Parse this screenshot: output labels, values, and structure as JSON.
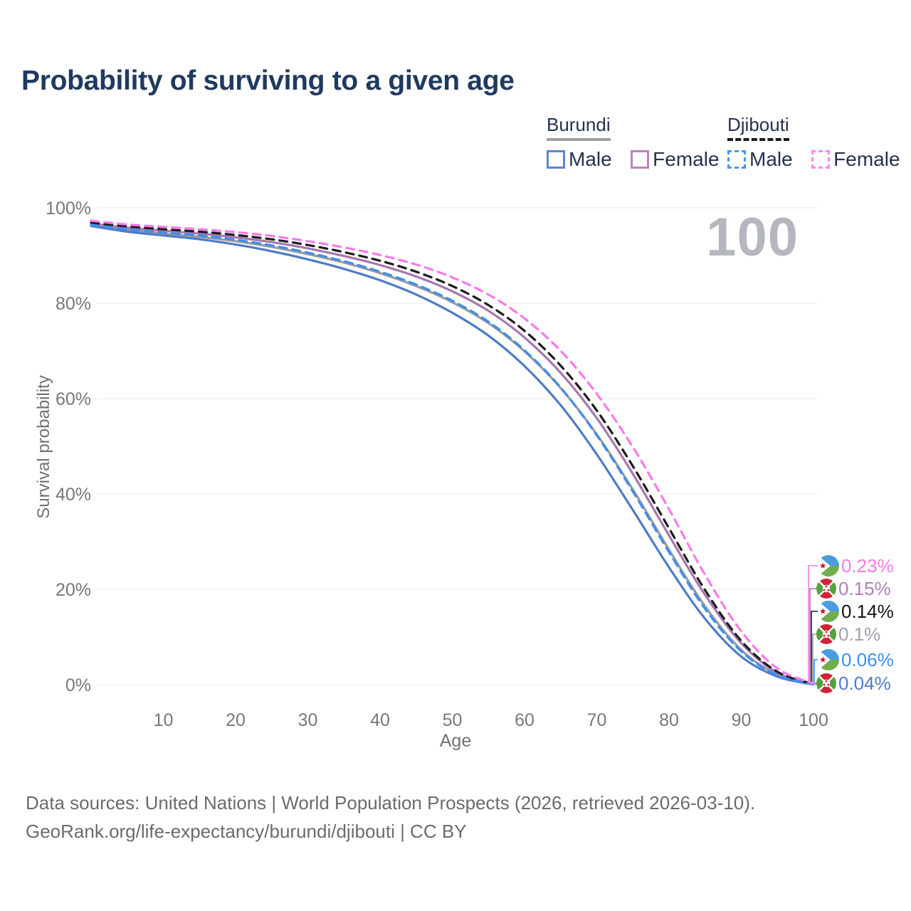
{
  "title": "Probability of surviving to a given age",
  "watermark": "100",
  "legend": {
    "groups": [
      {
        "name": "Burundi",
        "underline_style": "solid",
        "underline_color": "#9e9e9e",
        "items": [
          {
            "label": "Male",
            "swatch_color": "#5b87c9",
            "dashed": false
          },
          {
            "label": "Female",
            "swatch_color": "#c17fc0",
            "dashed": false
          }
        ]
      },
      {
        "name": "Djibouti",
        "underline_style": "dashed",
        "underline_color": "#1b1b1b",
        "items": [
          {
            "label": "Male",
            "swatch_color": "#4a97f5",
            "dashed": true
          },
          {
            "label": "Female",
            "swatch_color": "#ff89ec",
            "dashed": true
          }
        ]
      }
    ]
  },
  "chart_data": {
    "type": "line",
    "title": "Probability of surviving to a given age",
    "xlabel": "Age",
    "ylabel": "Survival probability",
    "xlim": [
      0,
      100
    ],
    "ylim": [
      0,
      100
    ],
    "grid": "horizontal",
    "x_ticks": [
      10,
      20,
      30,
      40,
      50,
      60,
      70,
      80,
      90,
      100
    ],
    "y_ticks": [
      0,
      20,
      40,
      60,
      80,
      100
    ],
    "y_tick_labels": [
      "0%",
      "20%",
      "40%",
      "60%",
      "80%",
      "100%"
    ],
    "x": [
      0,
      5,
      10,
      15,
      20,
      25,
      30,
      35,
      40,
      45,
      50,
      55,
      60,
      65,
      70,
      75,
      80,
      85,
      90,
      95,
      100
    ],
    "series": [
      {
        "name": "Burundi",
        "sex": "Both",
        "color": "#9a9a9a",
        "dashed": false,
        "values": [
          96.5,
          95.4,
          94.6,
          93.9,
          93.0,
          91.8,
          90.3,
          88.5,
          86.3,
          83.6,
          80.2,
          75.8,
          69.9,
          62.2,
          52.5,
          40.9,
          28.3,
          16.4,
          7.3,
          2.1,
          0.1
        ]
      },
      {
        "name": "Burundi Female",
        "sex": "Female",
        "color": "#a876ae",
        "dashed": false,
        "values": [
          96.7,
          95.8,
          95.2,
          94.6,
          93.8,
          92.8,
          91.5,
          89.9,
          88.0,
          85.6,
          82.5,
          78.4,
          72.8,
          65.4,
          55.9,
          44.2,
          31.3,
          18.8,
          8.7,
          2.5,
          0.15
        ]
      },
      {
        "name": "Burundi Male",
        "sex": "Male",
        "color": "#4d7cc6",
        "dashed": false,
        "values": [
          96.2,
          95.0,
          94.2,
          93.4,
          92.3,
          90.9,
          89.2,
          87.2,
          84.8,
          81.8,
          78.0,
          73.2,
          66.8,
          58.6,
          48.3,
          36.6,
          24.6,
          13.8,
          5.9,
          1.7,
          0.04
        ]
      },
      {
        "name": "Djibouti",
        "sex": "Both",
        "color": "#1c1c1c",
        "dashed": true,
        "values": [
          96.9,
          96.1,
          95.5,
          95.0,
          94.3,
          93.4,
          92.2,
          90.7,
          88.9,
          86.6,
          83.6,
          79.6,
          74.2,
          66.9,
          57.5,
          45.8,
          32.8,
          19.8,
          9.2,
          2.7,
          0.14
        ]
      },
      {
        "name": "Djibouti Male",
        "sex": "Male",
        "color": "#3e8ef2",
        "dashed": true,
        "values": [
          96.4,
          95.5,
          94.8,
          94.2,
          93.3,
          92.1,
          90.6,
          88.8,
          86.6,
          83.9,
          80.5,
          76.1,
          70.1,
          62.3,
          52.3,
          40.5,
          27.8,
          15.9,
          7.0,
          2.0,
          0.06
        ]
      },
      {
        "name": "Djibouti Female",
        "sex": "Female",
        "color": "#fb78e9",
        "dashed": true,
        "values": [
          97.3,
          96.5,
          96.0,
          95.5,
          94.9,
          94.1,
          93.0,
          91.7,
          90.1,
          88.1,
          85.4,
          81.8,
          76.8,
          70.0,
          61.0,
          49.8,
          36.8,
          23.0,
          11.2,
          3.4,
          0.23
        ]
      }
    ]
  },
  "end_labels": [
    {
      "flag": "djibouti",
      "value": "0.23%",
      "color": "#fb78e9",
      "series_index": 5
    },
    {
      "flag": "burundi",
      "value": "0.15%",
      "color": "#b27fb5",
      "series_index": 1
    },
    {
      "flag": "djibouti",
      "value": "0.14%",
      "color": "#141414",
      "series_index": 3
    },
    {
      "flag": "burundi",
      "value": "0.1%",
      "color": "#9ea3a9",
      "series_index": 0
    },
    {
      "flag": "djibouti",
      "value": "0.06%",
      "color": "#3e8ef2",
      "series_index": 4
    },
    {
      "flag": "burundi",
      "value": "0.04%",
      "color": "#4d7cc6",
      "series_index": 2
    }
  ],
  "footer": {
    "line1": "Data sources: United Nations | World Population Prospects (2026, retrieved 2026-03-10).",
    "line2": "GeoRank.org/life-expectancy/burundi/djibouti | CC BY"
  }
}
